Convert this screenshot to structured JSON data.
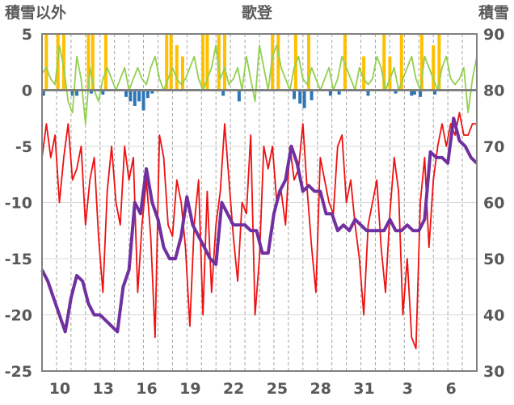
{
  "chart_data": {
    "type": "line",
    "title": "歌登",
    "left_axis_title": "積雪以外",
    "right_axis_title": "積雪",
    "left_ylim": [
      -25,
      5
    ],
    "left_ticks": [
      "5",
      "0",
      "-5",
      "-10",
      "-15",
      "-20",
      "-25"
    ],
    "right_ylim": [
      30,
      90
    ],
    "right_ticks": [
      "90",
      "80",
      "70",
      "60",
      "50",
      "40",
      "30"
    ],
    "x_ticks": [
      "10",
      "13",
      "16",
      "19",
      "22",
      "25",
      "28",
      "31",
      "3",
      "6"
    ],
    "x_tick_positions": [
      1,
      4,
      7,
      10,
      13,
      16,
      19,
      22,
      25,
      28
    ],
    "x_range": [
      0,
      30
    ],
    "grid": true,
    "colors": {
      "red_line": "#ee1111",
      "purple_line": "#7030a0",
      "green_line": "#92d050",
      "yellow_bars": "#ffc000",
      "blue_bars": "#2e75b6",
      "zero_line": "#7f7f7f",
      "grid_line": "#a6a6a6",
      "frame": "#808080"
    },
    "series": [
      {
        "axis": "left",
        "color": "#ee1111",
        "x": [
          0,
          0.3,
          0.6,
          0.9,
          1.2,
          1.5,
          1.8,
          2.1,
          2.4,
          2.7,
          3.0,
          3.3,
          3.6,
          3.9,
          4.2,
          4.5,
          4.8,
          5.1,
          5.4,
          5.7,
          6.0,
          6.3,
          6.6,
          6.9,
          7.2,
          7.5,
          7.8,
          8.1,
          8.4,
          8.7,
          9.0,
          9.3,
          9.6,
          9.9,
          10.2,
          10.5,
          10.8,
          11.1,
          11.4,
          11.7,
          12.0,
          12.3,
          12.6,
          12.9,
          13.2,
          13.5,
          13.8,
          14.1,
          14.4,
          14.7,
          15.0,
          15.3,
          15.6,
          15.9,
          16.2,
          16.5,
          16.8,
          17.1,
          17.4,
          17.7,
          18.0,
          18.3,
          18.6,
          18.9,
          19.2,
          19.5,
          19.8,
          20.1,
          20.4,
          20.7,
          21.0,
          21.3,
          21.6,
          21.9,
          22.2,
          22.5,
          22.8,
          23.1,
          23.4,
          23.7,
          24.0,
          24.3,
          24.6,
          24.9,
          25.2,
          25.5,
          25.8,
          26.1,
          26.4,
          26.7,
          27.0,
          27.3,
          27.6,
          27.9,
          28.2,
          28.5,
          28.8,
          29.1,
          29.4,
          29.7,
          30.0
        ],
        "values": [
          -6,
          -3,
          -6,
          -4,
          -10,
          -6,
          -3,
          -8,
          -7,
          -5,
          -12,
          -8,
          -6,
          -13,
          -18,
          -9,
          -5,
          -10,
          -12,
          -5,
          -8,
          -6,
          -18,
          -12,
          -8,
          -13,
          -22,
          -4,
          -6,
          -12,
          -13,
          -8,
          -10,
          -14,
          -21,
          -12,
          -8,
          -20,
          -9,
          -18,
          -12,
          -9,
          -3,
          -8,
          -13,
          -17,
          -10,
          -11,
          -4,
          -20,
          -15,
          -5,
          -7,
          -5,
          -10,
          -9,
          -12,
          -5,
          -8,
          -7,
          -3,
          -9,
          -14,
          -18,
          -6,
          -8,
          -10,
          -11,
          -5,
          -4,
          -10,
          -8,
          -12,
          -15,
          -20,
          -12,
          -10,
          -8,
          -14,
          -18,
          -11,
          -6,
          -9,
          -20,
          -15,
          -22,
          -23,
          -10,
          -6,
          -14,
          -8,
          -5,
          -3,
          -5,
          -3,
          -4,
          -2,
          -4,
          -4,
          -3,
          -3
        ]
      },
      {
        "axis": "right",
        "color": "#7030a0",
        "x": [
          0,
          0.4,
          0.8,
          1.2,
          1.6,
          2.0,
          2.4,
          2.8,
          3.2,
          3.6,
          4.0,
          4.4,
          4.8,
          5.2,
          5.6,
          6.0,
          6.4,
          6.8,
          7.2,
          7.6,
          8.0,
          8.4,
          8.8,
          9.2,
          9.6,
          10.0,
          10.4,
          10.8,
          11.2,
          11.6,
          12.0,
          12.4,
          12.8,
          13.2,
          13.6,
          14.0,
          14.4,
          14.8,
          15.2,
          15.6,
          16.0,
          16.4,
          16.8,
          17.2,
          17.6,
          18.0,
          18.4,
          18.8,
          19.2,
          19.6,
          20.0,
          20.4,
          20.8,
          21.2,
          21.6,
          22.0,
          22.4,
          22.8,
          23.2,
          23.6,
          24.0,
          24.4,
          24.8,
          25.2,
          25.6,
          26.0,
          26.4,
          26.8,
          27.2,
          27.6,
          28.0,
          28.4,
          28.8,
          29.2,
          29.6,
          30.0
        ],
        "values": [
          48,
          46,
          43,
          40,
          37,
          43,
          47,
          46,
          42,
          40,
          40,
          39,
          38,
          37,
          45,
          48,
          60,
          58,
          66,
          60,
          57,
          52,
          50,
          50,
          54,
          61,
          56,
          54,
          52,
          50,
          49,
          60,
          58,
          56,
          56,
          56,
          55,
          55,
          51,
          51,
          58,
          62,
          64,
          70,
          67,
          62,
          63,
          62,
          62,
          58,
          58,
          55,
          56,
          55,
          57,
          56,
          55,
          55,
          55,
          55,
          57,
          55,
          55,
          56,
          55,
          55,
          57,
          69,
          68,
          68,
          67,
          75,
          71,
          70,
          68,
          67
        ]
      },
      {
        "axis": "left",
        "color": "#92d050",
        "x": [
          0,
          0.3,
          0.6,
          0.9,
          1.2,
          1.5,
          1.8,
          2.1,
          2.4,
          2.7,
          3.0,
          3.3,
          3.6,
          3.9,
          4.2,
          4.5,
          4.8,
          5.1,
          5.4,
          5.7,
          6.0,
          6.3,
          6.6,
          6.9,
          7.2,
          7.5,
          7.8,
          8.1,
          8.4,
          8.7,
          9.0,
          9.3,
          9.6,
          9.9,
          10.2,
          10.5,
          10.8,
          11.1,
          11.4,
          11.7,
          12.0,
          12.3,
          12.6,
          12.9,
          13.2,
          13.5,
          13.8,
          14.1,
          14.4,
          14.7,
          15.0,
          15.3,
          15.6,
          15.9,
          16.2,
          16.5,
          16.8,
          17.1,
          17.4,
          17.7,
          18.0,
          18.3,
          18.6,
          18.9,
          19.2,
          19.5,
          19.8,
          20.1,
          20.4,
          20.7,
          21.0,
          21.3,
          21.6,
          21.9,
          22.2,
          22.5,
          22.8,
          23.1,
          23.4,
          23.7,
          24.0,
          24.3,
          24.6,
          24.9,
          25.2,
          25.5,
          25.8,
          26.1,
          26.4,
          26.7,
          27.0,
          27.3,
          27.6,
          27.9,
          28.2,
          28.5,
          28.8,
          29.1,
          29.4,
          29.7,
          30.0
        ],
        "values": [
          1.5,
          2,
          1,
          0.5,
          4,
          2,
          -1,
          -2,
          3,
          1,
          -3,
          2,
          0,
          -1,
          1,
          2,
          1,
          0,
          1,
          2,
          0,
          1,
          2,
          1,
          0.5,
          2,
          3,
          1,
          0,
          1,
          2,
          1,
          0.5,
          1,
          2,
          3,
          1,
          0,
          1,
          2,
          4,
          1,
          2,
          0.5,
          1,
          2,
          0,
          3,
          1,
          -1,
          4,
          2,
          0,
          3,
          4,
          2,
          1,
          0,
          2,
          3,
          1,
          0.5,
          2,
          1,
          0,
          1,
          2,
          0,
          1,
          3,
          2,
          1,
          0,
          2,
          1,
          0.5,
          1,
          3,
          2,
          0,
          1,
          2,
          0,
          1,
          2,
          3,
          1,
          0,
          3,
          2,
          1,
          0,
          2,
          3,
          1,
          0.5,
          1,
          2,
          -2,
          1,
          3
        ]
      }
    ],
    "bars": [
      {
        "name": "yellow",
        "axis": "left",
        "color": "#ffc000",
        "x": [
          0.3,
          1.1,
          1.5,
          3.2,
          3.5,
          4.4,
          8.6,
          8.9,
          9.3,
          9.7,
          11.1,
          11.4,
          12.2,
          12.6,
          15.9,
          16.3,
          17.5,
          18.4,
          20.9,
          22.2,
          23.6,
          24.0,
          24.8,
          26.2,
          27.0,
          27.4
        ],
        "values": [
          5,
          5,
          5,
          5,
          5,
          5,
          5,
          5,
          4,
          3,
          5,
          5,
          5,
          5,
          5,
          5,
          5,
          5,
          5,
          3,
          5,
          3,
          5,
          5,
          4,
          5
        ]
      },
      {
        "name": "blue",
        "axis": "left",
        "color": "#2e75b6",
        "x": [
          0.1,
          2.1,
          2.4,
          3.4,
          4.2,
          5.8,
          6.1,
          6.4,
          6.7,
          7.0,
          7.3,
          7.6,
          12.5,
          13.6,
          17.4,
          17.8,
          18.1,
          18.6,
          19.9,
          20.5,
          22.5,
          24.4,
          25.5,
          25.7,
          26.1,
          27.1
        ],
        "values": [
          -0.5,
          -0.5,
          -0.5,
          -0.3,
          -0.4,
          -0.6,
          -1.0,
          -1.4,
          -1.0,
          -1.8,
          -0.7,
          -0.3,
          -0.5,
          -1.0,
          -0.8,
          -1.2,
          -1.6,
          -0.9,
          -0.5,
          -0.4,
          -0.5,
          -0.3,
          -0.5,
          -0.4,
          -0.6,
          -0.4
        ]
      }
    ]
  }
}
